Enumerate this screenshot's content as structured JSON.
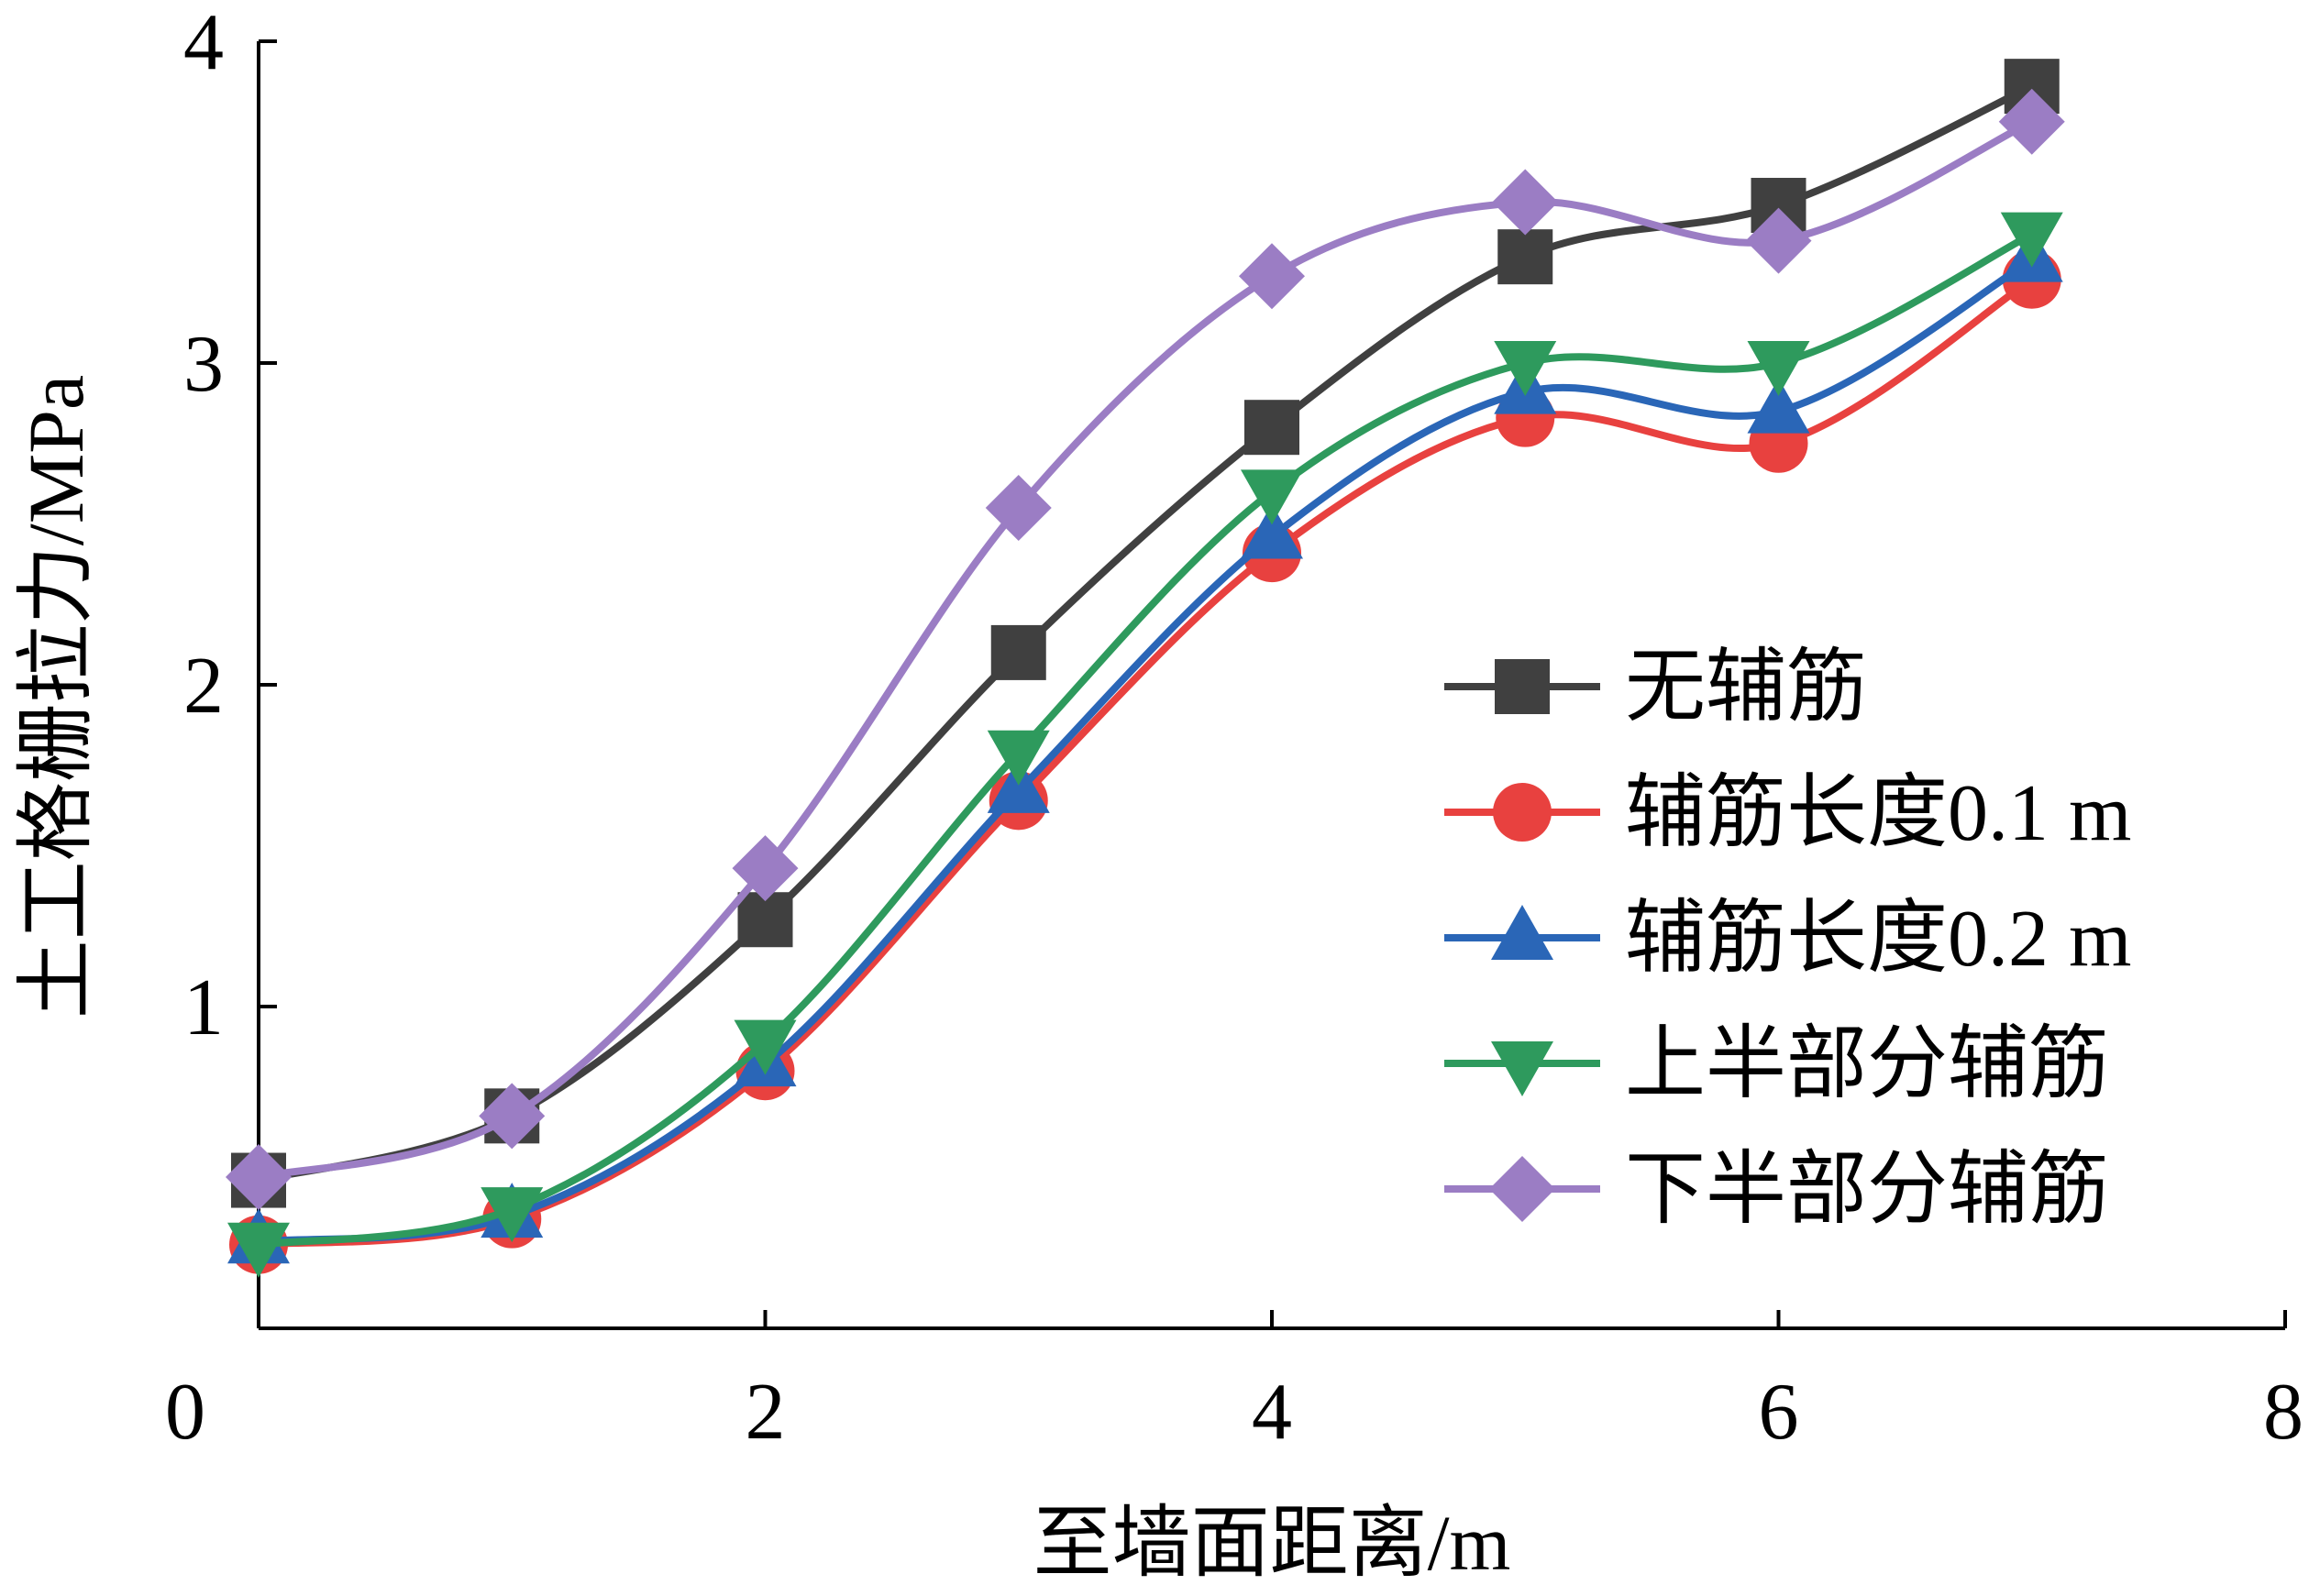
{
  "chart_data": {
    "type": "line",
    "smooth": true,
    "xlabel": "至墙面距离/m",
    "ylabel": "土工格栅拉力/MPa",
    "xlim": [
      0,
      8
    ],
    "ylim": [
      0,
      4
    ],
    "xticks": [
      "0",
      "2",
      "4",
      "6",
      "8"
    ],
    "yticks": [
      "1",
      "2",
      "3",
      "4"
    ],
    "grid": false,
    "legend_position": "right",
    "x": [
      0,
      1,
      2,
      3,
      4,
      5,
      6,
      7
    ],
    "series": [
      {
        "name": "无辅筋",
        "color": "#404040",
        "marker": "square",
        "values": [
          0.46,
          0.66,
          1.27,
          2.1,
          2.8,
          3.33,
          3.49,
          3.86
        ]
      },
      {
        "name": "辅筋长度0.1 m",
        "color": "#e8413f",
        "marker": "circle",
        "values": [
          0.26,
          0.34,
          0.8,
          1.64,
          2.41,
          2.83,
          2.75,
          3.26
        ]
      },
      {
        "name": "辅筋长度0.2 m",
        "color": "#2a66b7",
        "marker": "triangle-up",
        "values": [
          0.27,
          0.35,
          0.82,
          1.67,
          2.46,
          2.91,
          2.85,
          3.32
        ]
      },
      {
        "name": "上半部分辅筋",
        "color": "#2e9a5d",
        "marker": "triangle-down",
        "values": [
          0.26,
          0.37,
          0.89,
          1.79,
          2.6,
          3.0,
          3.0,
          3.4
        ]
      },
      {
        "name": "下半部分辅筋",
        "color": "#9b7dc4",
        "marker": "diamond",
        "values": [
          0.47,
          0.66,
          1.43,
          2.55,
          3.27,
          3.5,
          3.38,
          3.75
        ]
      }
    ]
  }
}
